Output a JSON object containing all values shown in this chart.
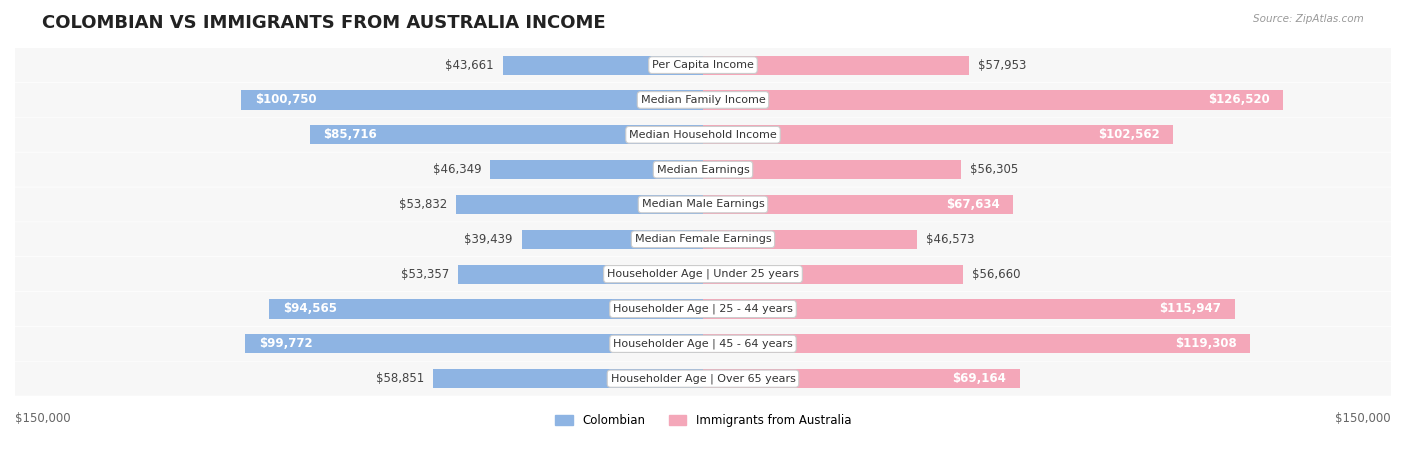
{
  "title": "COLOMBIAN VS IMMIGRANTS FROM AUSTRALIA INCOME",
  "source": "Source: ZipAtlas.com",
  "categories": [
    "Per Capita Income",
    "Median Family Income",
    "Median Household Income",
    "Median Earnings",
    "Median Male Earnings",
    "Median Female Earnings",
    "Householder Age | Under 25 years",
    "Householder Age | 25 - 44 years",
    "Householder Age | 45 - 64 years",
    "Householder Age | Over 65 years"
  ],
  "colombian_values": [
    43661,
    100750,
    85716,
    46349,
    53832,
    39439,
    53357,
    94565,
    99772,
    58851
  ],
  "australia_values": [
    57953,
    126520,
    102562,
    56305,
    67634,
    46573,
    56660,
    115947,
    119308,
    69164
  ],
  "colombian_labels": [
    "$43,661",
    "$100,750",
    "$85,716",
    "$46,349",
    "$53,832",
    "$39,439",
    "$53,357",
    "$94,565",
    "$99,772",
    "$58,851"
  ],
  "australia_labels": [
    "$57,953",
    "$126,520",
    "$102,562",
    "$56,305",
    "$67,634",
    "$46,573",
    "$56,660",
    "$115,947",
    "$119,308",
    "$69,164"
  ],
  "colombian_color": "#8EB4E3",
  "australia_color": "#F4A7B9",
  "colombian_color_dark": "#6CA0D8",
  "australia_color_dark": "#EF87A3",
  "bar_bg_color": "#F0F0F0",
  "row_bg_color": "#F7F7F7",
  "max_value": 150000,
  "legend_colombian": "Colombian",
  "legend_australia": "Immigrants from Australia",
  "xlabel_left": "$150,000",
  "xlabel_right": "$150,000",
  "title_fontsize": 13,
  "label_fontsize": 8.5,
  "category_fontsize": 8,
  "background_color": "#FFFFFF"
}
